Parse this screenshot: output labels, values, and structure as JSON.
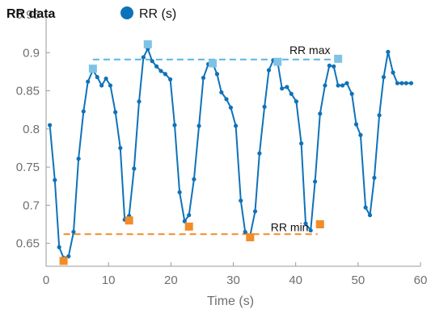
{
  "chart_data": {
    "type": "line",
    "title": "RR data",
    "xlabel": "Time (s)",
    "ylabel": "",
    "xlim": [
      0,
      60
    ],
    "ylim": [
      0.62,
      0.95
    ],
    "xticks": [
      0,
      10,
      20,
      30,
      40,
      50,
      60
    ],
    "yticks": [
      0.65,
      0.7,
      0.75,
      0.8,
      0.85,
      0.9,
      0.95
    ],
    "xtick_labels": [
      "0",
      "10",
      "20",
      "30",
      "40",
      "50",
      "60"
    ],
    "ytick_labels": [
      "0.65",
      "0.7",
      "0.75",
      "0.8",
      "0.85",
      "0.9",
      "0.95"
    ],
    "grid": false,
    "legend_position": "top",
    "colors": {
      "series": "#0e72b9",
      "max_marker": "#7ec3e6",
      "max_line": "#5ab4e2",
      "min_marker": "#f28c28",
      "min_line": "#f28c28",
      "axis": "#9a9a9a"
    },
    "series": [
      {
        "name": "RR (s)",
        "x": [
          0.6,
          1.4,
          2.1,
          2.8,
          3.6,
          4.4,
          5.2,
          6.0,
          6.7,
          7.5,
          8.2,
          8.9,
          9.6,
          10.3,
          11.1,
          11.9,
          12.6,
          13.3,
          14.1,
          14.9,
          15.6,
          16.3,
          17.0,
          17.7,
          18.4,
          19.1,
          19.9,
          20.6,
          21.4,
          22.2,
          22.9,
          23.7,
          24.5,
          25.2,
          26.0,
          26.7,
          27.4,
          28.1,
          28.9,
          29.6,
          30.4,
          31.2,
          31.9,
          32.7,
          33.5,
          34.2,
          35.0,
          35.7,
          36.4,
          37.1,
          37.8,
          38.6,
          39.3,
          40.1,
          40.9,
          41.6,
          42.4,
          43.1,
          43.9,
          44.7,
          45.4,
          46.1,
          46.8,
          47.5,
          48.2,
          49.0,
          49.7,
          50.4,
          51.2,
          51.9,
          52.6,
          53.4,
          54.1,
          54.8,
          55.6,
          56.3,
          57.0,
          57.7,
          58.5
        ],
        "y": [
          0.805,
          0.733,
          0.645,
          0.631,
          0.633,
          0.665,
          0.761,
          0.823,
          0.862,
          0.877,
          0.868,
          0.857,
          0.866,
          0.857,
          0.822,
          0.775,
          0.681,
          0.686,
          0.748,
          0.836,
          0.894,
          0.905,
          0.889,
          0.882,
          0.876,
          0.872,
          0.865,
          0.805,
          0.717,
          0.679,
          0.687,
          0.734,
          0.804,
          0.867,
          0.885,
          0.886,
          0.872,
          0.848,
          0.839,
          0.828,
          0.804,
          0.706,
          0.665,
          0.66,
          0.692,
          0.768,
          0.829,
          0.877,
          0.89,
          0.888,
          0.853,
          0.855,
          0.846,
          0.836,
          0.781,
          0.676,
          0.667,
          0.731,
          0.82,
          0.857,
          0.883,
          0.882,
          0.857,
          0.857,
          0.86,
          0.846,
          0.806,
          0.792,
          0.697,
          0.687,
          0.736,
          0.818,
          0.868,
          0.901,
          0.874,
          0.86,
          0.86,
          0.86,
          0.86
        ]
      }
    ],
    "rr_max_markers": {
      "x": [
        7.5,
        16.3,
        26.7,
        37.1,
        46.8
      ],
      "y": [
        0.879,
        0.911,
        0.886,
        0.888,
        0.892
      ]
    },
    "rr_min_markers": {
      "x": [
        2.8,
        13.3,
        22.9,
        32.7,
        43.9
      ],
      "y": [
        0.627,
        0.68,
        0.672,
        0.658,
        0.675
      ]
    },
    "rr_max_line": {
      "x": [
        7.5,
        47.0
      ],
      "y": 0.891
    },
    "rr_min_line": {
      "x": [
        2.8,
        43.5
      ],
      "y": 0.662
    },
    "annotations": [
      {
        "text": "RR max",
        "x": 39.0,
        "y": 0.898
      },
      {
        "text": "RR min",
        "x": 36.0,
        "y": 0.666
      }
    ]
  }
}
